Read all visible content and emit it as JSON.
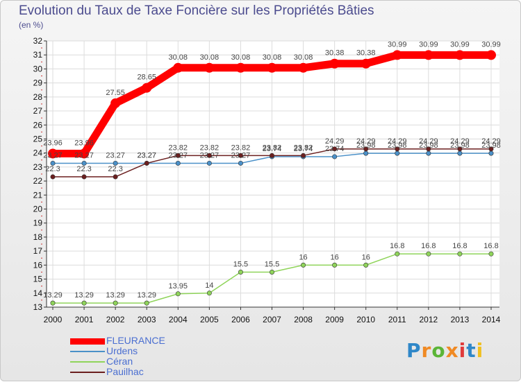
{
  "title": "Evolution du Taux de Taxe Foncière sur les Propriétés Bâties",
  "unit_label": "(en %)",
  "logo": {
    "text": "Proxiti",
    "colors": [
      "#2f87c8",
      "#f08a24",
      "#5bb537",
      "#f08a24",
      "#e03b3b",
      "#2f87c8",
      "#f0c020"
    ]
  },
  "chart_data": {
    "type": "line",
    "title": "Evolution du Taux de Taxe Foncière sur les Propriétés Bâties",
    "ylabel": "(en %)",
    "xlabel": "",
    "ylim": [
      13,
      32
    ],
    "yticks": [
      "13",
      "14",
      "15",
      "16",
      "17",
      "18",
      "19",
      "20",
      "21",
      "22",
      "23",
      "24",
      "25",
      "26",
      "27",
      "28",
      "29",
      "30",
      "31",
      "32"
    ],
    "x": [
      "2000",
      "2001",
      "2002",
      "2003",
      "2004",
      "2005",
      "2006",
      "2007",
      "2008",
      "2009",
      "2010",
      "2011",
      "2012",
      "2013",
      "2014"
    ],
    "series": [
      {
        "name": "FLEURANCE",
        "color": "#ff0000",
        "thick": true,
        "values": [
          23.96,
          23.96,
          27.55,
          28.65,
          30.08,
          30.08,
          30.08,
          30.08,
          30.08,
          30.38,
          30.38,
          30.99,
          30.99,
          30.99,
          30.99
        ]
      },
      {
        "name": "Urdens",
        "color": "#4a90c8",
        "thick": false,
        "values": [
          23.27,
          23.27,
          23.27,
          23.27,
          23.27,
          23.27,
          23.27,
          23.74,
          23.74,
          23.74,
          23.98,
          23.98,
          23.98,
          23.98,
          23.98
        ]
      },
      {
        "name": "Céran",
        "color": "#8fd45a",
        "thick": false,
        "values": [
          13.29,
          13.29,
          13.29,
          13.29,
          13.95,
          14,
          15.5,
          15.5,
          16,
          16,
          16,
          16.8,
          16.8,
          16.8,
          16.8
        ]
      },
      {
        "name": "Pauilhac",
        "color": "#6b1f1f",
        "thick": false,
        "values": [
          22.3,
          22.3,
          22.3,
          23.27,
          23.82,
          23.82,
          23.82,
          23.82,
          23.82,
          24.29,
          24.29,
          24.29,
          24.29,
          24.29,
          24.29
        ]
      }
    ],
    "legend_position": "bottom-left"
  }
}
